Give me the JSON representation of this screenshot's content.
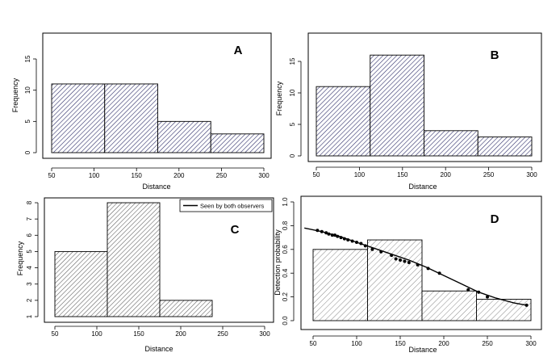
{
  "chart_data": [
    {
      "panel": "A",
      "type": "bar",
      "style": "histogram",
      "bin_edges": [
        50,
        112.5,
        175,
        237.5,
        300
      ],
      "values": [
        11,
        11,
        5,
        3
      ],
      "xlabel": "Distance",
      "ylabel": "Frequency",
      "xlim": [
        50,
        300
      ],
      "ylim": [
        0,
        18
      ],
      "xticks": [
        50,
        100,
        150,
        200,
        250,
        300
      ],
      "yticks": [
        0,
        5,
        10,
        15
      ],
      "fill": "hatched",
      "bar_color": "#2f2f6a",
      "border_color": "#000000"
    },
    {
      "panel": "B",
      "type": "bar",
      "style": "histogram",
      "bin_edges": [
        50,
        112.5,
        175,
        237.5,
        300
      ],
      "values": [
        11,
        16,
        4,
        3
      ],
      "xlabel": "Distance",
      "ylabel": "Frequency",
      "xlim": [
        50,
        300
      ],
      "ylim": [
        0,
        18
      ],
      "xticks": [
        50,
        100,
        150,
        200,
        250,
        300
      ],
      "yticks": [
        0,
        5,
        10,
        15
      ],
      "fill": "hatched",
      "bar_color": "#2f2f6a",
      "border_color": "#000000"
    },
    {
      "panel": "C",
      "type": "bar",
      "style": "histogram",
      "bin_edges": [
        50,
        112.5,
        175,
        237.5,
        300
      ],
      "values": [
        5,
        8,
        2,
        1
      ],
      "xlabel": "Distance",
      "ylabel": "Frequency",
      "xlim": [
        50,
        300
      ],
      "ylim": [
        1,
        8
      ],
      "xticks": [
        50,
        100,
        150,
        200,
        250,
        300
      ],
      "yticks": [
        1,
        2,
        3,
        4,
        5,
        6,
        7,
        8
      ],
      "legend": {
        "label": "Seen by both observers",
        "placement": "top-right"
      },
      "fill": "hatched",
      "bar_color": "#666666",
      "border_color": "#000000"
    },
    {
      "panel": "D",
      "type": "line",
      "style": "histogram with fitted detection curve",
      "bin_edges": [
        50,
        112.5,
        175,
        237.5,
        300
      ],
      "values": [
        0.6,
        0.68,
        0.25,
        0.18
      ],
      "curve": {
        "x": [
          40,
          60,
          80,
          100,
          120,
          140,
          160,
          180,
          200,
          220,
          240,
          260,
          280,
          295
        ],
        "y": [
          0.78,
          0.75,
          0.71,
          0.66,
          0.61,
          0.56,
          0.51,
          0.45,
          0.38,
          0.31,
          0.24,
          0.19,
          0.15,
          0.13
        ]
      },
      "points": {
        "x": [
          55,
          60,
          65,
          68,
          72,
          75,
          78,
          82,
          86,
          90,
          95,
          100,
          105,
          110,
          118,
          128,
          140,
          145,
          150,
          155,
          160,
          170,
          182,
          195,
          228,
          240,
          250,
          295
        ],
        "y": [
          0.76,
          0.75,
          0.74,
          0.73,
          0.72,
          0.72,
          0.71,
          0.7,
          0.69,
          0.68,
          0.67,
          0.66,
          0.65,
          0.63,
          0.6,
          0.58,
          0.55,
          0.52,
          0.51,
          0.5,
          0.49,
          0.47,
          0.44,
          0.4,
          0.26,
          0.24,
          0.2,
          0.13
        ]
      },
      "xlabel": "Distance",
      "ylabel": "Detection probability",
      "xlim": [
        40,
        305
      ],
      "ylim": [
        0,
        1
      ],
      "xticks": [
        50,
        100,
        150,
        200,
        250,
        300
      ],
      "yticks": [
        0.0,
        0.2,
        0.4,
        0.6,
        0.8,
        1.0
      ],
      "fill": "hatched",
      "bar_color": "#6a6a6a",
      "border_color": "#000000",
      "line_color": "#000000"
    }
  ],
  "labels": {
    "a": "A",
    "b": "B",
    "c": "C",
    "d": "D"
  }
}
